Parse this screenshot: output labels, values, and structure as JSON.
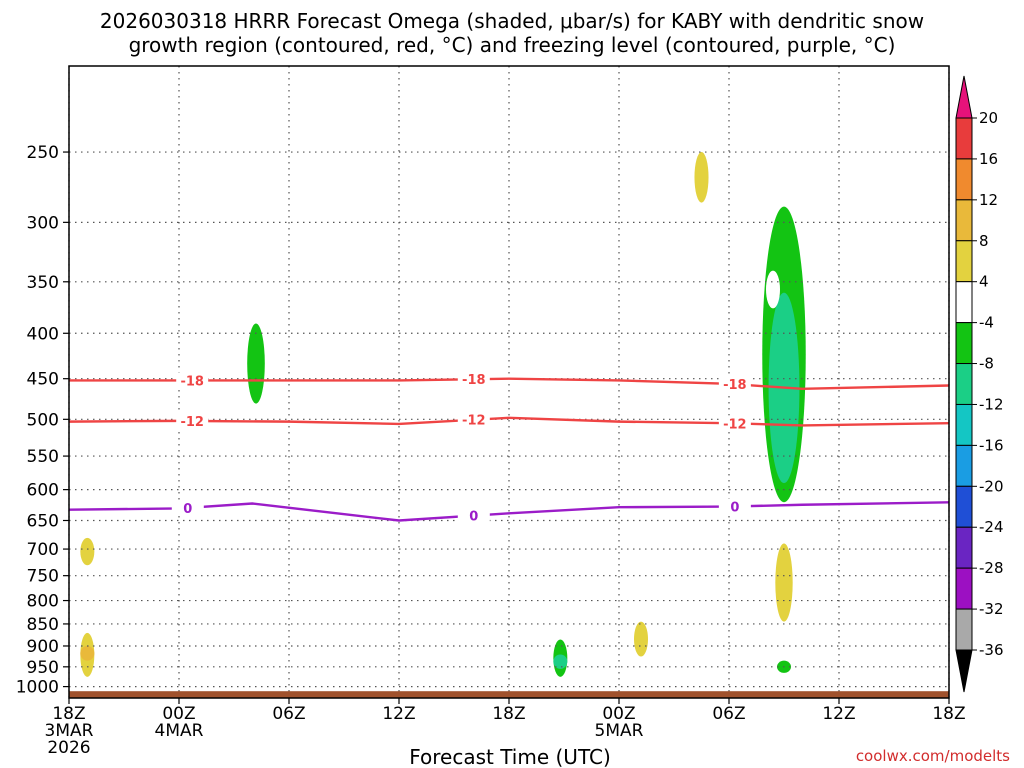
{
  "title": {
    "line1": "2026030318 HRRR Forecast Omega (shaded, μbar/s) for KABY with dendritic snow",
    "line2": "growth region (contoured, red, °C) and freezing level (contoured, purple, °C)"
  },
  "credit": "coolwx.com/modelts",
  "chart_data": {
    "type": "time-height contour",
    "xlabel": "Forecast Time (UTC)",
    "ylabel": "",
    "x_ticks": [
      {
        "hour": 0,
        "lines": [
          "18Z",
          "3MAR",
          "2026"
        ]
      },
      {
        "hour": 6,
        "lines": [
          "00Z",
          "4MAR"
        ]
      },
      {
        "hour": 12,
        "lines": [
          "06Z"
        ]
      },
      {
        "hour": 18,
        "lines": [
          "12Z"
        ]
      },
      {
        "hour": 24,
        "lines": [
          "18Z"
        ]
      },
      {
        "hour": 30,
        "lines": [
          "00Z",
          "5MAR"
        ]
      },
      {
        "hour": 36,
        "lines": [
          "06Z"
        ]
      },
      {
        "hour": 42,
        "lines": [
          "12Z"
        ]
      },
      {
        "hour": 48,
        "lines": [
          "18Z"
        ]
      }
    ],
    "xlim_hours": [
      0,
      48
    ],
    "y_ticks": [
      250,
      300,
      350,
      400,
      450,
      500,
      550,
      600,
      650,
      700,
      750,
      800,
      850,
      900,
      950,
      1000
    ],
    "y_unit": "hPa",
    "y_scale": "log (pressure)",
    "ylim": [
      1030,
      200
    ],
    "grid": true,
    "colorbar": {
      "levels": [
        20,
        16,
        12,
        8,
        4,
        -4,
        -8,
        -12,
        -16,
        -20,
        -24,
        -28,
        -32,
        -36
      ],
      "colors": [
        "#e83c3c",
        "#f08a2e",
        "#e9b93a",
        "#e3d23f",
        "#ffffff",
        "#13c413",
        "#1bcf86",
        "#14c6c4",
        "#1a9de3",
        "#1f4fd6",
        "#6a25c2",
        "#9c10c2",
        "#a9a9a9"
      ],
      "over_color": "#e6127a",
      "under_color": "#000000"
    },
    "contours": [
      {
        "label": "-18",
        "color": "#ef4444",
        "hours": [
          0,
          6,
          12,
          18,
          24,
          30,
          36,
          40,
          48
        ],
        "pressure": [
          452,
          452,
          452,
          452,
          450,
          452,
          456,
          462,
          458
        ]
      },
      {
        "label": "-12",
        "color": "#ef4444",
        "hours": [
          0,
          6,
          12,
          18,
          24,
          30,
          36,
          40,
          48
        ],
        "pressure": [
          503,
          502,
          503,
          506,
          498,
          503,
          505,
          508,
          505
        ]
      },
      {
        "label": "0",
        "color": "#9b1cc8",
        "hours": [
          0,
          6,
          10,
          18,
          24,
          30,
          36,
          40,
          48
        ],
        "pressure": [
          632,
          630,
          622,
          650,
          638,
          628,
          627,
          624,
          620
        ]
      }
    ],
    "omega_regions": [
      {
        "hour": 39.0,
        "p_min": 288,
        "p_max": 620,
        "value": -8
      },
      {
        "hour": 39.0,
        "p_min": 360,
        "p_max": 590,
        "value": -12
      },
      {
        "hour": 38.4,
        "p_min": 340,
        "p_max": 375,
        "value": -4
      },
      {
        "hour": 34.5,
        "p_min": 250,
        "p_max": 285,
        "value": 4
      },
      {
        "hour": 10.2,
        "p_min": 390,
        "p_max": 480,
        "value": -8
      },
      {
        "hour": 26.8,
        "p_min": 885,
        "p_max": 975,
        "value": -8
      },
      {
        "hour": 26.8,
        "p_min": 920,
        "p_max": 955,
        "value": -12
      },
      {
        "hour": 1.0,
        "p_min": 870,
        "p_max": 975,
        "value": 4
      },
      {
        "hour": 1.0,
        "p_min": 900,
        "p_max": 935,
        "value": 8
      },
      {
        "hour": 1.0,
        "p_min": 680,
        "p_max": 730,
        "value": 4
      },
      {
        "hour": 31.2,
        "p_min": 845,
        "p_max": 925,
        "value": 4
      },
      {
        "hour": 39.0,
        "p_min": 690,
        "p_max": 845,
        "value": 4
      },
      {
        "hour": 39.0,
        "p_min": 935,
        "p_max": 965,
        "value": -8
      }
    ]
  }
}
